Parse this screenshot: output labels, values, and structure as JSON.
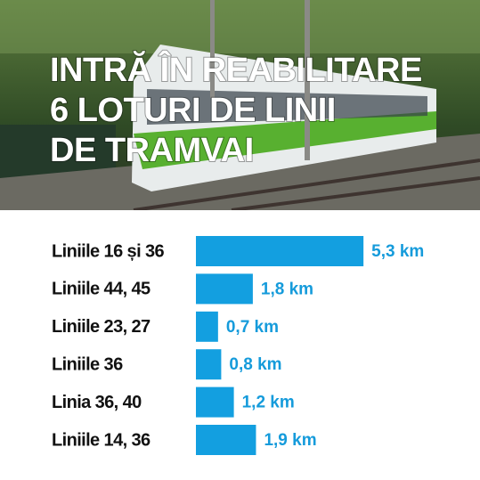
{
  "chart_data": {
    "type": "bar",
    "orientation": "horizontal",
    "title": [
      "INTRĂ ÎN REABILITARE",
      "6 LOTURI DE LINII",
      "DE TRAMVAI"
    ],
    "categories": [
      "Liniile 16 și 36",
      "Liniile 44, 45",
      "Liniile 23, 27",
      "Liniile 36",
      "Linia 36, 40",
      "Liniile 14, 36"
    ],
    "values": [
      5.3,
      1.8,
      0.7,
      0.8,
      1.2,
      1.9
    ],
    "value_labels": [
      "5,3 km",
      "1,8 km",
      "0,7 km",
      "0,8 km",
      "1,2 km",
      "1,9 km"
    ],
    "color": "#139fe0",
    "label_color": "#159bdb"
  }
}
